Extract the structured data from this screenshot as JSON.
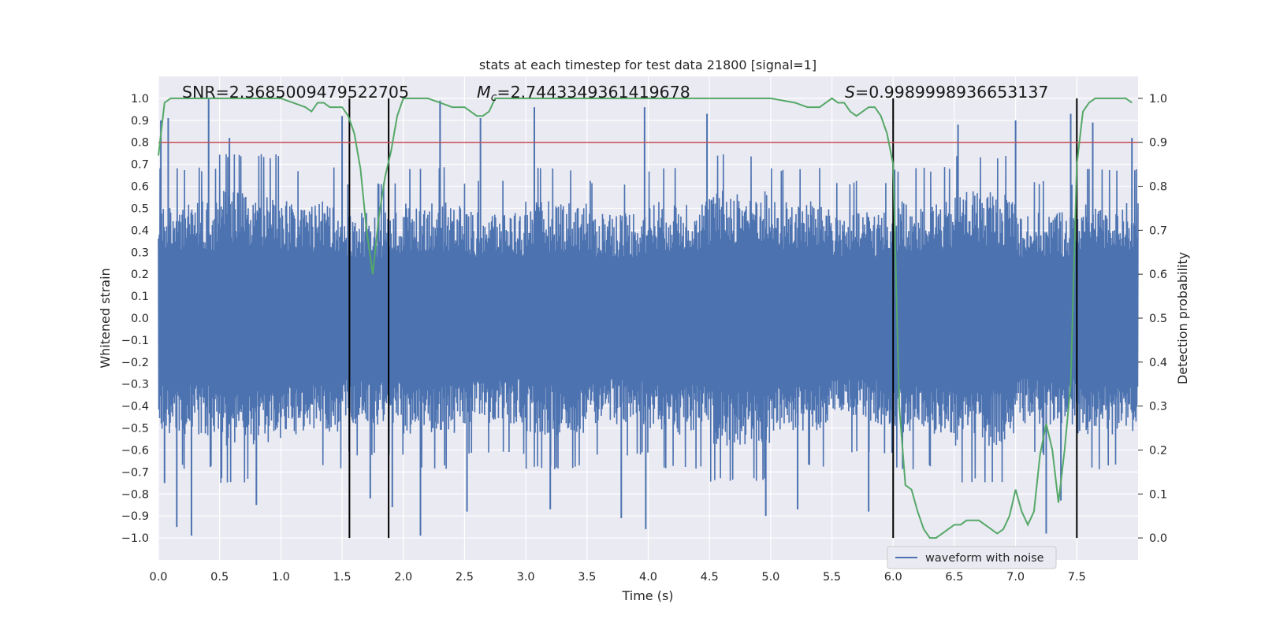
{
  "chart_data": {
    "type": "line",
    "title": "stats at each timestep for test data 21800 [signal=1]",
    "xlabel": "Time (s)",
    "ylabel_left": "Whitened strain",
    "ylabel_right": "Detection probability",
    "xlim": [
      0.0,
      8.0
    ],
    "ylim_left": [
      -1.1,
      1.1
    ],
    "ylim_right": [
      -0.05,
      1.05
    ],
    "grid": true,
    "xticks": [
      "0.0",
      "0.5",
      "1.0",
      "1.5",
      "2.0",
      "2.5",
      "3.0",
      "3.5",
      "4.0",
      "4.5",
      "5.0",
      "5.5",
      "6.0",
      "6.5",
      "7.0",
      "7.5"
    ],
    "yticks_left": [
      "1.0",
      "0.9",
      "0.8",
      "0.7",
      "0.6",
      "0.5",
      "0.4",
      "0.3",
      "0.2",
      "0.1",
      "0.0",
      "−0.1",
      "−0.2",
      "−0.3",
      "−0.4",
      "−0.5",
      "−0.6",
      "−0.7",
      "−0.8",
      "−0.9",
      "−1.0"
    ],
    "yticks_right": [
      "1.0",
      "0.9",
      "0.8",
      "0.7",
      "0.6",
      "0.5",
      "0.4",
      "0.3",
      "0.2",
      "0.1",
      "0.0"
    ],
    "annotations": {
      "snr": "SNR=2.3685009479522705",
      "mc_symbol": "M",
      "mc_sub": "c",
      "mc_value": "=2.7443349361419678",
      "s_symbol": "S",
      "s_value": "=0.9989998936653137"
    },
    "threshold": {
      "value": 0.9,
      "axis": "right",
      "color": "#c44e52"
    },
    "vertical_lines": [
      1.56,
      1.88,
      6.0,
      7.5
    ],
    "legend": {
      "label": "waveform with noise",
      "position": "lower-right"
    },
    "series": [
      {
        "name": "waveform with noise",
        "axis": "left",
        "color": "#4c72b0",
        "note": "dense whitened noise ~ amplitude 0.4-1.0, 8 s duration",
        "envelope_upper": [
          0.55,
          0.6,
          0.55,
          0.5,
          0.55,
          0.5,
          0.55,
          0.5,
          0.55,
          0.6,
          0.55,
          0.5,
          0.55,
          0.6,
          0.5,
          0.55
        ],
        "envelope_lower": [
          -0.55,
          -0.6,
          -0.55,
          -0.5,
          -0.55,
          -0.5,
          -0.55,
          -0.5,
          -0.55,
          -0.6,
          -0.55,
          -0.5,
          -0.55,
          -0.6,
          -0.5,
          -0.55
        ],
        "peaks": [
          [
            0.02,
            0.9
          ],
          [
            0.05,
            -0.75
          ],
          [
            0.08,
            0.91
          ],
          [
            0.15,
            -0.95
          ],
          [
            0.27,
            -0.99
          ],
          [
            0.41,
            1.0
          ],
          [
            0.58,
            0.82
          ],
          [
            0.8,
            -0.85
          ],
          [
            1.5,
            0.92
          ],
          [
            1.73,
            -0.82
          ],
          [
            1.91,
            -0.86
          ],
          [
            2.14,
            -0.99
          ],
          [
            2.3,
            0.99
          ],
          [
            2.52,
            -0.88
          ],
          [
            2.63,
            0.91
          ],
          [
            3.07,
            0.96
          ],
          [
            3.2,
            -0.87
          ],
          [
            3.78,
            -0.91
          ],
          [
            3.97,
            0.96
          ],
          [
            3.98,
            -0.96
          ],
          [
            4.48,
            0.93
          ],
          [
            4.96,
            -0.9
          ],
          [
            5.22,
            -0.87
          ],
          [
            5.8,
            -0.88
          ],
          [
            6.53,
            0.88
          ],
          [
            7.0,
            0.9
          ],
          [
            7.25,
            -0.98
          ],
          [
            7.37,
            -0.83
          ],
          [
            7.45,
            0.93
          ],
          [
            7.63,
            0.89
          ],
          [
            7.95,
            0.82
          ]
        ]
      },
      {
        "name": "Detection probability",
        "axis": "right",
        "color": "#55a868",
        "x": [
          0.0,
          0.05,
          0.1,
          0.15,
          0.2,
          0.3,
          0.5,
          0.7,
          0.9,
          1.0,
          1.1,
          1.2,
          1.25,
          1.3,
          1.35,
          1.4,
          1.45,
          1.5,
          1.55,
          1.6,
          1.65,
          1.7,
          1.75,
          1.8,
          1.85,
          1.9,
          1.95,
          2.0,
          2.1,
          2.2,
          2.3,
          2.4,
          2.5,
          2.6,
          2.65,
          2.7,
          2.75,
          2.8,
          2.9,
          3.0,
          3.5,
          4.0,
          4.5,
          5.0,
          5.2,
          5.3,
          5.4,
          5.45,
          5.5,
          5.55,
          5.6,
          5.65,
          5.7,
          5.75,
          5.8,
          5.85,
          5.9,
          5.95,
          6.0,
          6.05,
          6.1,
          6.15,
          6.2,
          6.25,
          6.3,
          6.35,
          6.4,
          6.45,
          6.5,
          6.55,
          6.6,
          6.65,
          6.7,
          6.75,
          6.8,
          6.85,
          6.9,
          6.95,
          7.0,
          7.05,
          7.1,
          7.15,
          7.2,
          7.25,
          7.3,
          7.35,
          7.4,
          7.45,
          7.5,
          7.55,
          7.6,
          7.65,
          7.7,
          7.8,
          7.9,
          7.95
        ],
        "values": [
          0.87,
          0.99,
          1.0,
          1.0,
          1.0,
          1.0,
          1.0,
          1.0,
          1.0,
          1.0,
          0.99,
          0.98,
          0.97,
          0.99,
          0.99,
          0.98,
          0.98,
          0.98,
          0.96,
          0.92,
          0.84,
          0.7,
          0.6,
          0.73,
          0.82,
          0.88,
          0.96,
          1.0,
          1.0,
          1.0,
          0.99,
          0.98,
          0.98,
          0.96,
          0.96,
          0.97,
          1.0,
          1.0,
          1.0,
          1.0,
          1.0,
          1.0,
          1.0,
          1.0,
          0.99,
          0.98,
          0.98,
          0.99,
          1.0,
          0.99,
          0.99,
          0.97,
          0.96,
          0.97,
          0.98,
          0.98,
          0.96,
          0.92,
          0.85,
          0.3,
          0.12,
          0.11,
          0.06,
          0.02,
          0.0,
          0.0,
          0.01,
          0.02,
          0.03,
          0.03,
          0.04,
          0.04,
          0.04,
          0.03,
          0.02,
          0.01,
          0.02,
          0.05,
          0.11,
          0.06,
          0.03,
          0.06,
          0.19,
          0.26,
          0.2,
          0.08,
          0.2,
          0.35,
          0.85,
          0.97,
          0.99,
          1.0,
          1.0,
          1.0,
          1.0,
          0.99
        ]
      }
    ]
  }
}
